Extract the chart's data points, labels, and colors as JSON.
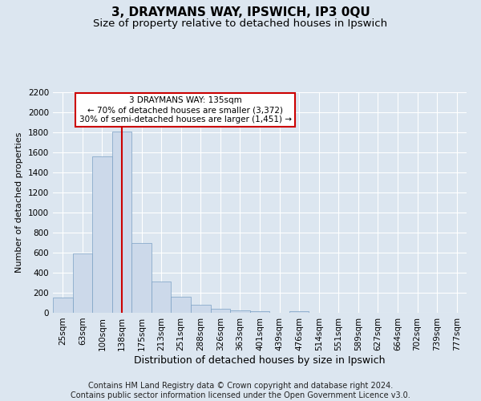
{
  "title": "3, DRAYMANS WAY, IPSWICH, IP3 0QU",
  "subtitle": "Size of property relative to detached houses in Ipswich",
  "xlabel": "Distribution of detached houses by size in Ipswich",
  "ylabel": "Number of detached properties",
  "categories": [
    "25sqm",
    "63sqm",
    "100sqm",
    "138sqm",
    "175sqm",
    "213sqm",
    "251sqm",
    "288sqm",
    "326sqm",
    "363sqm",
    "401sqm",
    "439sqm",
    "476sqm",
    "514sqm",
    "551sqm",
    "589sqm",
    "627sqm",
    "664sqm",
    "702sqm",
    "739sqm",
    "777sqm"
  ],
  "values": [
    155,
    590,
    1560,
    1810,
    700,
    310,
    160,
    80,
    40,
    22,
    18,
    0,
    18,
    0,
    0,
    0,
    0,
    0,
    0,
    0,
    0
  ],
  "bar_color": "#ccd9ea",
  "bar_edge_color": "#7aa0c4",
  "vline_x": 3,
  "vline_color": "#cc0000",
  "annotation_text": "3 DRAYMANS WAY: 135sqm\n← 70% of detached houses are smaller (3,372)\n30% of semi-detached houses are larger (1,451) →",
  "annotation_box_color": "#ffffff",
  "annotation_box_edge_color": "#cc0000",
  "ylim": [
    0,
    2200
  ],
  "yticks": [
    0,
    200,
    400,
    600,
    800,
    1000,
    1200,
    1400,
    1600,
    1800,
    2000,
    2200
  ],
  "bg_color": "#dce6f0",
  "plot_bg_color": "#dce6f0",
  "footer": "Contains HM Land Registry data © Crown copyright and database right 2024.\nContains public sector information licensed under the Open Government Licence v3.0.",
  "title_fontsize": 11,
  "subtitle_fontsize": 9.5,
  "xlabel_fontsize": 9,
  "ylabel_fontsize": 8,
  "tick_fontsize": 7.5,
  "footer_fontsize": 7
}
